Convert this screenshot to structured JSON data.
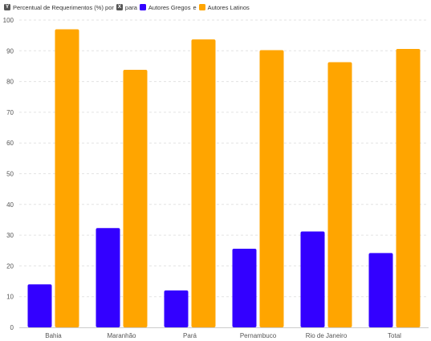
{
  "legend": {
    "prefix": "Percentual de Requerimentos (%) por",
    "prefix_badge": "Y",
    "connector": "para",
    "connector_badge": "X",
    "conjunction": "e"
  },
  "colors": {
    "Autores Gregos": "#3300ff",
    "Autores Latinos": "#ffa500",
    "badge": "#555555"
  },
  "chart_data": {
    "type": "bar",
    "categories": [
      "Bahia",
      "Maranhão",
      "Pará",
      "Pernambuco",
      "Rio de Janeiro",
      "Total"
    ],
    "series": [
      {
        "name": "Autores Gregos",
        "values": [
          14,
          32.3,
          12,
          25.6,
          31.2,
          24.2
        ]
      },
      {
        "name": "Autores Latinos",
        "values": [
          97,
          83.8,
          93.7,
          90.2,
          86.3,
          90.6
        ]
      }
    ],
    "title": "",
    "xlabel": "",
    "ylabel": "",
    "ylim": [
      0,
      100
    ],
    "yticks": [
      0,
      10,
      20,
      30,
      40,
      50,
      60,
      70,
      80,
      90,
      100
    ],
    "grid": true,
    "legend_position": "top-left"
  }
}
